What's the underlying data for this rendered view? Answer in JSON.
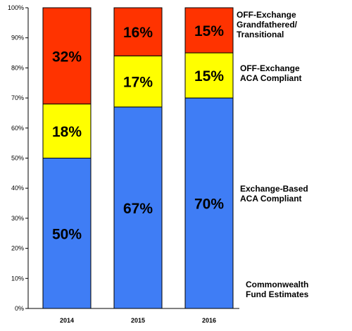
{
  "chart_data": {
    "type": "bar",
    "stacked": true,
    "categories": [
      "2014",
      "2015",
      "2016"
    ],
    "series": [
      {
        "name": "Exchange-Based ACA Compliant",
        "values": [
          50,
          67,
          70
        ],
        "color": "#3f7df5"
      },
      {
        "name": "OFF-Exchange ACA Compliant",
        "values": [
          18,
          17,
          15
        ],
        "color": "#ffff00"
      },
      {
        "name": "OFF-Exchange Grandfathered/ Transitional",
        "values": [
          32,
          16,
          15
        ],
        "color": "#ff3300"
      }
    ],
    "data_labels": [
      [
        "50%",
        "67%",
        "70%"
      ],
      [
        "18%",
        "17%",
        "15%"
      ],
      [
        "32%",
        "16%",
        "15%"
      ]
    ],
    "legend_lines": [
      [
        "Exchange-Based",
        "ACA Compliant"
      ],
      [
        "OFF-Exchange",
        "ACA Compliant"
      ],
      [
        "OFF-Exchange",
        "Grandfathered/",
        "Transitional"
      ]
    ],
    "y_ticks": [
      "0%",
      "10%",
      "20%",
      "30%",
      "40%",
      "50%",
      "60%",
      "70%",
      "80%",
      "90%",
      "100%"
    ],
    "ylim": [
      0,
      100
    ],
    "grid": false,
    "legend_position": "right",
    "note_lines": [
      "Commonwealth",
      "Fund Estimates"
    ]
  }
}
